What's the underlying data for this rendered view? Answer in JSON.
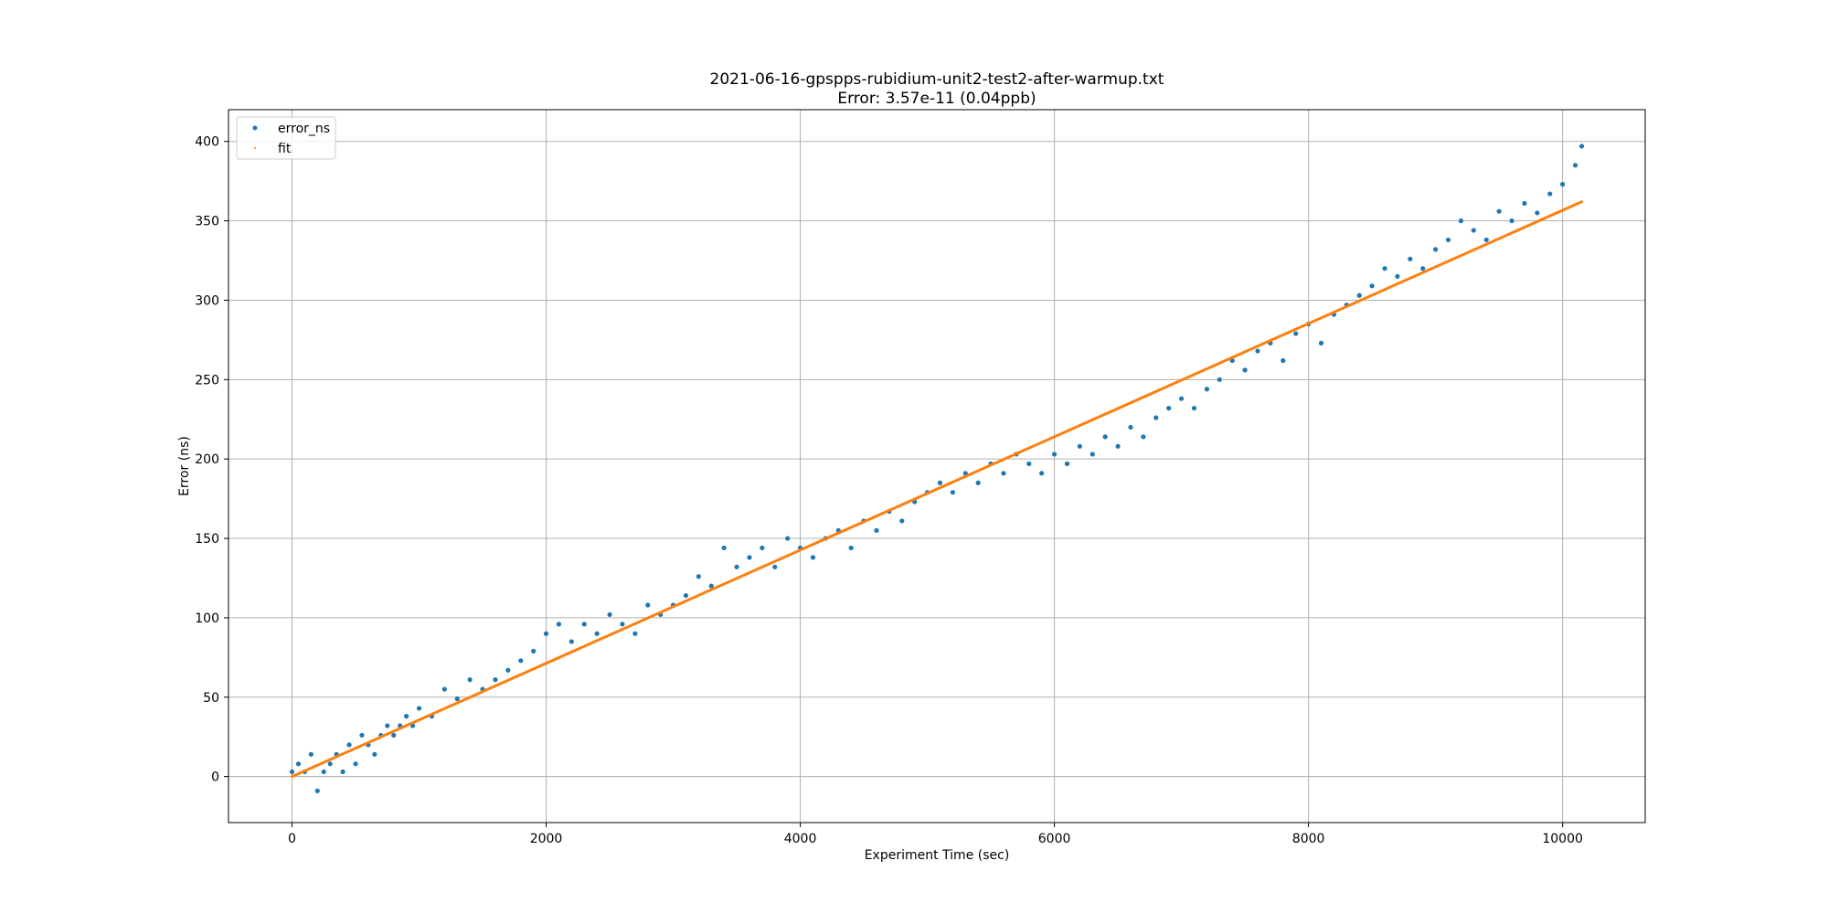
{
  "chart_data": {
    "type": "scatter",
    "title": "2021-06-16-gpspps-rubidium-unit2-test2-after-warmup.txt",
    "subtitle": "Error: 3.57e-11 (0.04ppb)",
    "xlabel": "Experiment Time (sec)",
    "ylabel": "Error (ns)",
    "xlim": [
      -500,
      10650
    ],
    "ylim": [
      -29,
      420
    ],
    "xticks": [
      0,
      2000,
      4000,
      6000,
      8000,
      10000
    ],
    "yticks": [
      0,
      50,
      100,
      150,
      200,
      250,
      300,
      350,
      400
    ],
    "grid": true,
    "legend_position": "top-left",
    "colors": {
      "error_ns": "#1f77b4",
      "fit": "#ff7f0e"
    },
    "series": [
      {
        "name": "error_ns",
        "kind": "points",
        "note_points": "dense per-second samples; representative points listed",
        "x": [
          0,
          50,
          100,
          150,
          200,
          250,
          300,
          350,
          400,
          450,
          500,
          550,
          600,
          650,
          700,
          750,
          800,
          850,
          900,
          950,
          1000,
          1100,
          1200,
          1300,
          1400,
          1500,
          1600,
          1700,
          1800,
          1900,
          2000,
          2100,
          2200,
          2300,
          2400,
          2500,
          2600,
          2700,
          2800,
          2900,
          3000,
          3100,
          3200,
          3300,
          3400,
          3500,
          3600,
          3700,
          3800,
          3900,
          4000,
          4100,
          4200,
          4300,
          4400,
          4500,
          4600,
          4700,
          4800,
          4900,
          5000,
          5100,
          5200,
          5300,
          5400,
          5500,
          5600,
          5700,
          5800,
          5900,
          6000,
          6100,
          6200,
          6300,
          6400,
          6500,
          6600,
          6700,
          6800,
          6900,
          7000,
          7100,
          7200,
          7300,
          7400,
          7500,
          7600,
          7700,
          7800,
          7900,
          8000,
          8100,
          8200,
          8300,
          8400,
          8500,
          8600,
          8700,
          8800,
          8900,
          9000,
          9100,
          9200,
          9300,
          9400,
          9500,
          9600,
          9700,
          9800,
          9900,
          10000,
          10100,
          10150
        ],
        "y": [
          3,
          8,
          3,
          14,
          -9,
          3,
          8,
          14,
          3,
          20,
          8,
          26,
          20,
          14,
          26,
          32,
          26,
          32,
          38,
          32,
          43,
          38,
          55,
          49,
          61,
          55,
          61,
          67,
          73,
          79,
          90,
          96,
          85,
          96,
          90,
          102,
          96,
          90,
          108,
          102,
          108,
          114,
          126,
          120,
          144,
          132,
          138,
          144,
          132,
          150,
          144,
          138,
          150,
          155,
          144,
          161,
          155,
          167,
          161,
          173,
          179,
          185,
          179,
          191,
          185,
          197,
          191,
          203,
          197,
          191,
          203,
          197,
          208,
          203,
          214,
          208,
          220,
          214,
          226,
          232,
          238,
          232,
          244,
          250,
          262,
          256,
          268,
          273,
          262,
          279,
          285,
          273,
          291,
          297,
          303,
          309,
          320,
          315,
          326,
          320,
          332,
          338,
          350,
          344,
          338,
          356,
          350,
          361,
          355,
          367,
          373,
          385,
          397
        ]
      },
      {
        "name": "fit",
        "kind": "line",
        "x": [
          0,
          10150
        ],
        "y": [
          0,
          362
        ]
      }
    ]
  }
}
